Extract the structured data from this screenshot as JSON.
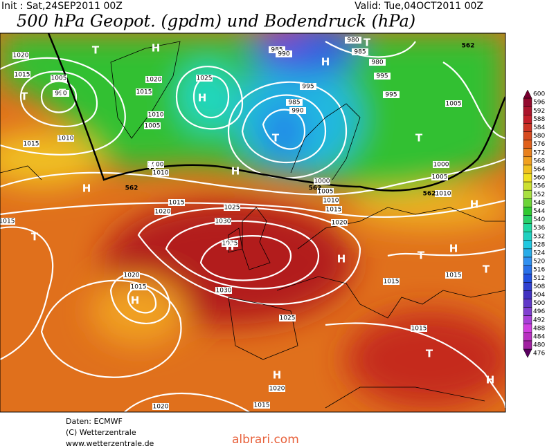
{
  "header": {
    "init": "Init : Sat,24SEP2011 00Z",
    "valid": "Valid: Tue,04OCT2011 00Z",
    "title": "500 hPa Geopot. (gpdm) und Bodendruck (hPa)"
  },
  "colorbar": {
    "labels": [
      600,
      596,
      592,
      588,
      584,
      580,
      576,
      572,
      568,
      564,
      560,
      556,
      552,
      548,
      544,
      540,
      536,
      532,
      528,
      524,
      520,
      516,
      512,
      508,
      504,
      500,
      496,
      492,
      488,
      484,
      480,
      476
    ]
  },
  "map": {
    "isobar_labels": [
      "1020",
      "1015",
      "1005",
      "990",
      "1020",
      "1025",
      "1015",
      "1010",
      "1005",
      "1010",
      "1000",
      "1015",
      "1010",
      "985",
      "990",
      "985",
      "980",
      "995",
      "985",
      "990",
      "995",
      "980",
      "995",
      "1005",
      "1000",
      "1005",
      "1010",
      "1000",
      "1005",
      "1010",
      "1015",
      "1020",
      "1015",
      "1025",
      "1030",
      "1035",
      "1030",
      "1025",
      "1020",
      "1015",
      "1020",
      "1015",
      "1015",
      "1020",
      "1015",
      "1015",
      "1020",
      "1015"
    ],
    "centers": [
      "H",
      "T",
      "H",
      "H",
      "T",
      "T",
      "H",
      "H",
      "H",
      "T",
      "H",
      "T",
      "T",
      "H",
      "H",
      "T",
      "T",
      "H",
      "T",
      "H",
      "T",
      "H",
      "H",
      "T"
    ],
    "contour_labels": [
      "562",
      "562",
      "562",
      "562"
    ]
  },
  "footer": {
    "lines": [
      "Daten: ECMWF",
      "(C) Wetterzentrale",
      "www.wetterzentrale.de"
    ],
    "watermark": "albrari.com"
  }
}
